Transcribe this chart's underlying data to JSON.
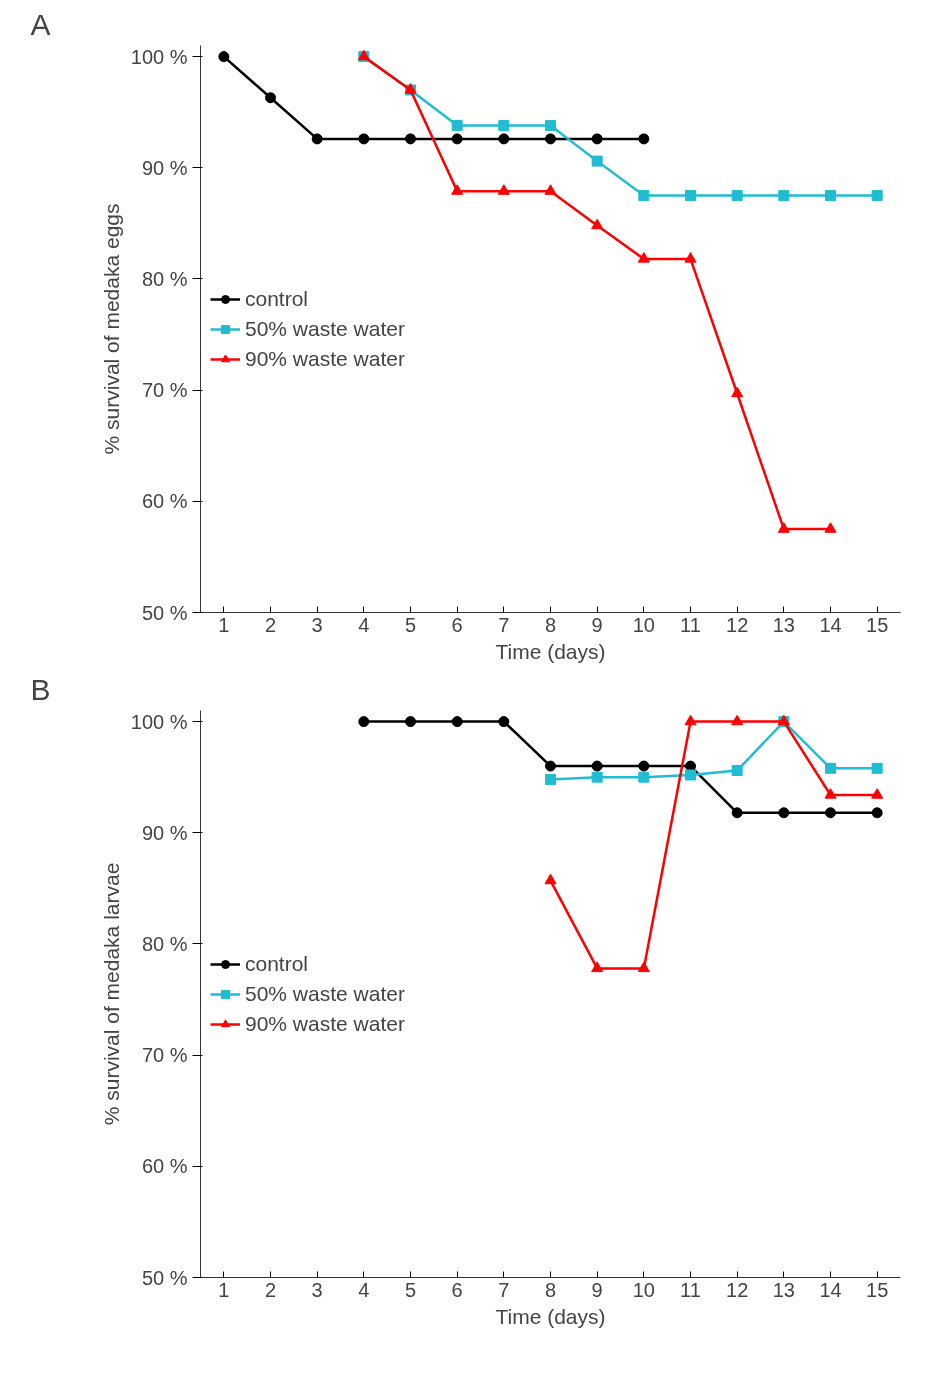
{
  "chart_data": [
    {
      "type": "line",
      "xlabel": "Time (days)",
      "ylabel": "% survival of medaka eggs",
      "annotations": [
        "A"
      ],
      "xlim": [
        0.5,
        15.5
      ],
      "xticks": [
        1,
        2,
        3,
        4,
        5,
        6,
        7,
        8,
        9,
        10,
        11,
        12,
        13,
        14,
        15
      ],
      "ylim": [
        50,
        101
      ],
      "yticks": [
        {
          "value": 50,
          "label": "50 %"
        },
        {
          "value": 60,
          "label": "60 %"
        },
        {
          "value": 70,
          "label": "70 %"
        },
        {
          "value": 80,
          "label": "80 %"
        },
        {
          "value": 90,
          "label": "90 %"
        },
        {
          "value": 100,
          "label": "100 %"
        }
      ],
      "grid": false,
      "legend": "left",
      "series": [
        {
          "name": "control",
          "color": "#000000",
          "marker": "circle",
          "x": [
            1,
            2,
            3,
            4,
            5,
            6,
            7,
            8,
            9,
            10
          ],
          "values": [
            100,
            96.3,
            92.6,
            92.6,
            92.6,
            92.6,
            92.6,
            92.6,
            92.6,
            92.6
          ]
        },
        {
          "name": "50% waste water",
          "color": "#1fbcd2",
          "marker": "square",
          "x": [
            4,
            5,
            6,
            7,
            8,
            9,
            10,
            11,
            12,
            13,
            14,
            15
          ],
          "values": [
            100,
            97,
            93.8,
            93.8,
            93.8,
            90.6,
            87.5,
            87.5,
            87.5,
            87.5,
            87.5,
            87.5
          ]
        },
        {
          "name": "90% waste water",
          "color": "#ff0000",
          "marker": "triangle",
          "x": [
            4,
            5,
            6,
            7,
            8,
            9,
            10,
            11,
            12,
            13,
            14
          ],
          "values": [
            100,
            97,
            87.9,
            87.9,
            87.9,
            84.8,
            81.8,
            81.8,
            69.7,
            57.5,
            57.5
          ]
        }
      ]
    },
    {
      "type": "line",
      "xlabel": "Time (days)",
      "ylabel": "% survival of medaka larvae",
      "annotations": [
        "B"
      ],
      "xlim": [
        0.5,
        15.5
      ],
      "xticks": [
        1,
        2,
        3,
        4,
        5,
        6,
        7,
        8,
        9,
        10,
        11,
        12,
        13,
        14,
        15
      ],
      "ylim": [
        50,
        101
      ],
      "yticks": [
        {
          "value": 50,
          "label": "50 %"
        },
        {
          "value": 60,
          "label": "60 %"
        },
        {
          "value": 70,
          "label": "70 %"
        },
        {
          "value": 80,
          "label": "80 %"
        },
        {
          "value": 90,
          "label": "90 %"
        },
        {
          "value": 100,
          "label": "100 %"
        }
      ],
      "grid": false,
      "legend": "left",
      "series": [
        {
          "name": "control",
          "color": "#000000",
          "marker": "circle",
          "x": [
            4,
            5,
            6,
            7,
            8,
            9,
            10,
            11,
            12,
            13,
            14,
            15
          ],
          "values": [
            100,
            100,
            100,
            100,
            96,
            96,
            96,
            96,
            91.8,
            91.8,
            91.8,
            91.8
          ]
        },
        {
          "name": "50% waste water",
          "color": "#1fbcd2",
          "marker": "square",
          "x": [
            8,
            9,
            10,
            11,
            12,
            13,
            14,
            15
          ],
          "values": [
            94.8,
            95,
            95,
            95.2,
            95.6,
            100,
            95.8,
            95.8
          ]
        },
        {
          "name": "90% waste water",
          "color": "#ff0000",
          "marker": "triangle",
          "x": [
            8,
            9,
            10,
            11,
            12,
            13,
            14,
            15
          ],
          "values": [
            85.7,
            77.8,
            77.8,
            100,
            100,
            100,
            93.4,
            93.4
          ]
        }
      ]
    }
  ]
}
